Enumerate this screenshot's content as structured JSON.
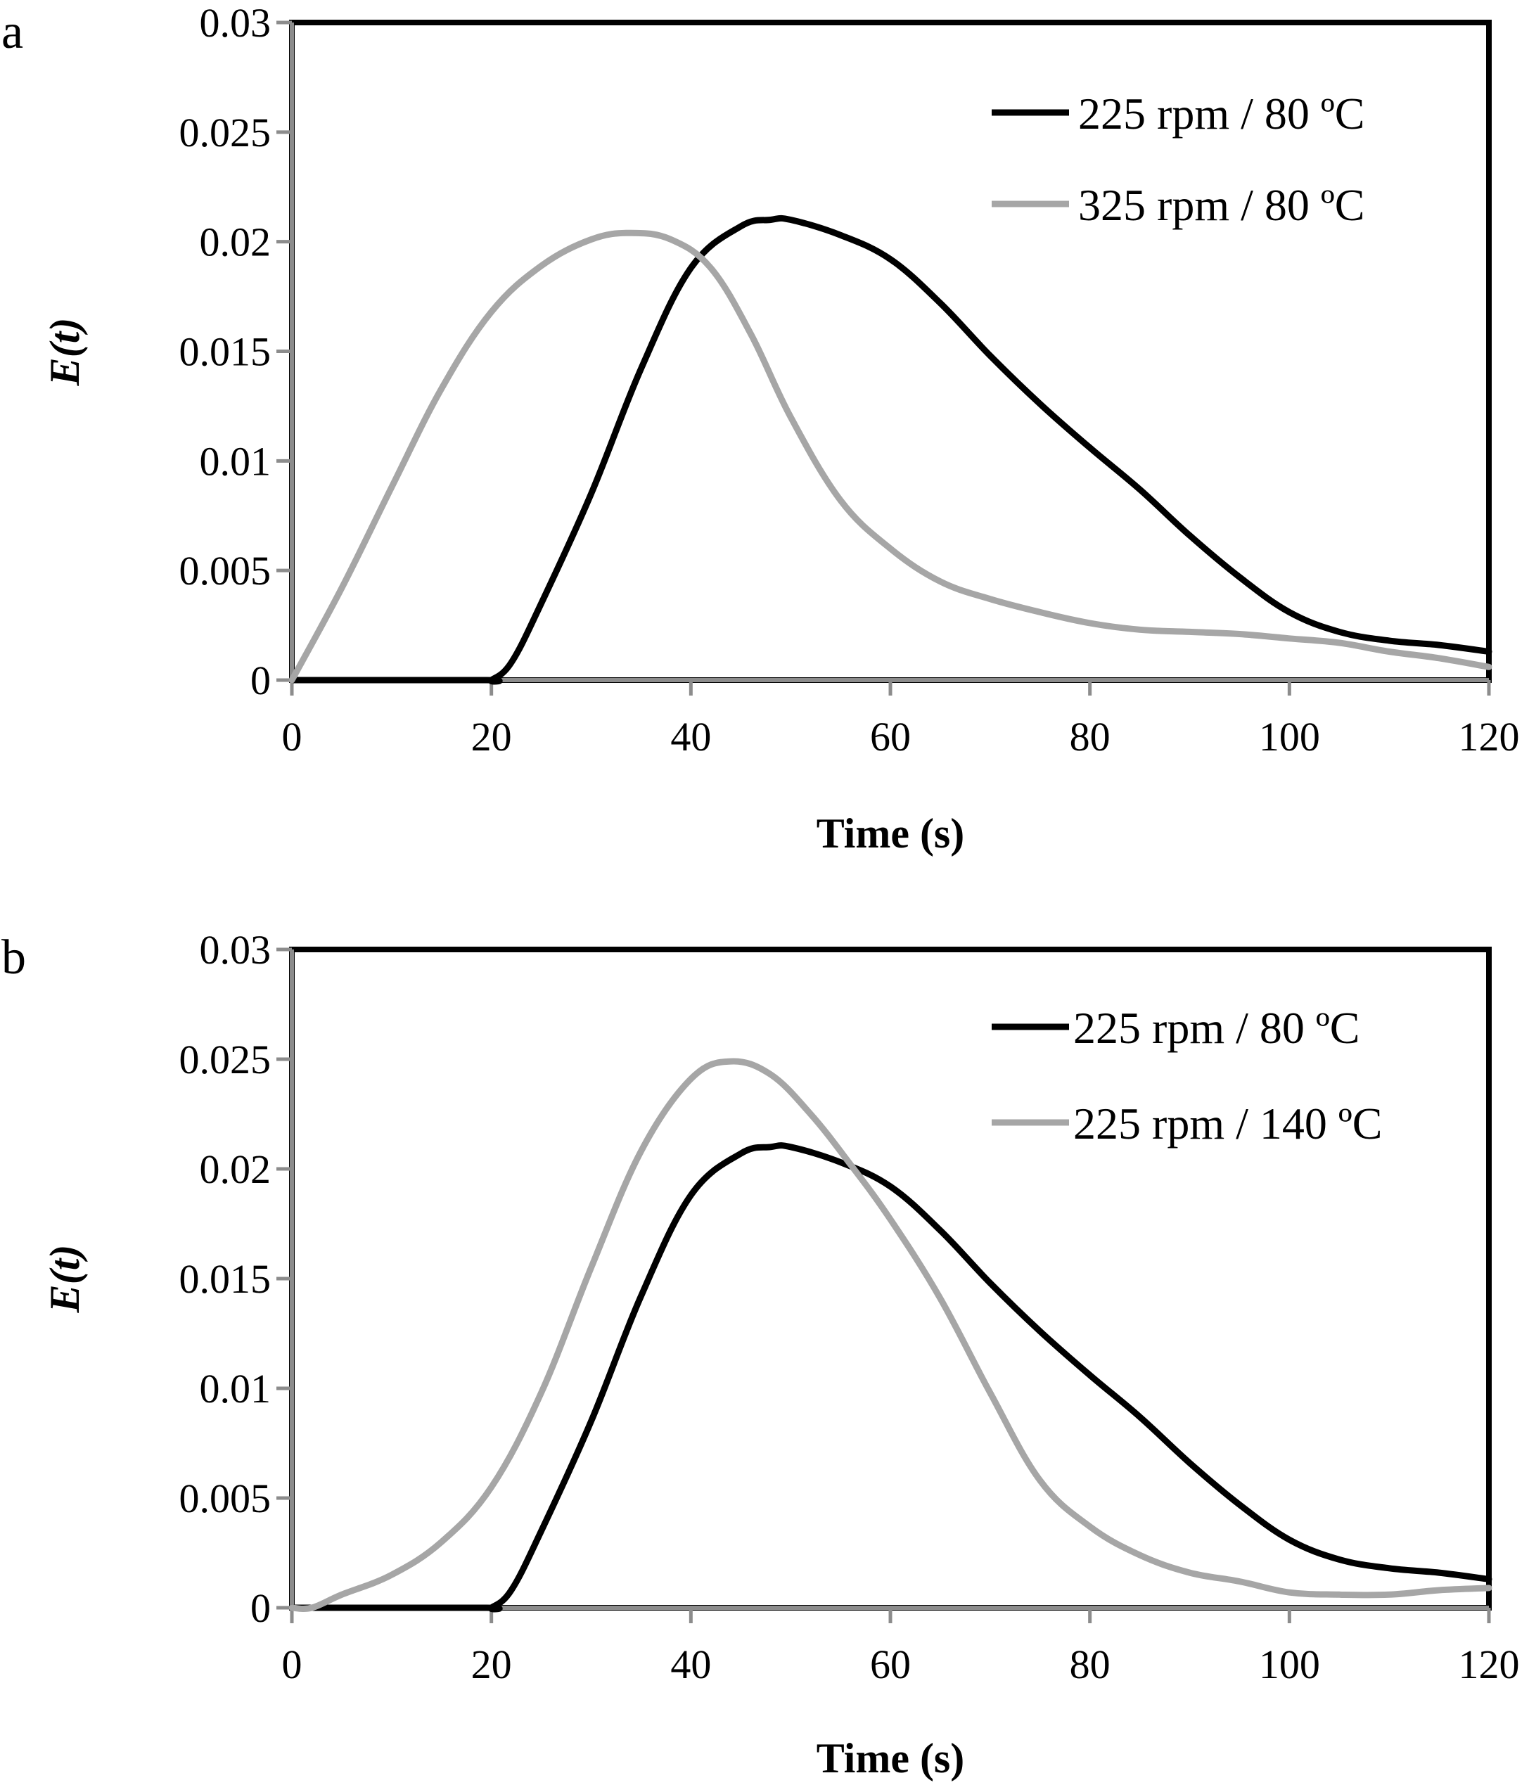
{
  "chart_data": [
    {
      "type": "line",
      "panel_label": "a",
      "xlabel": "Time (s)",
      "ylabel": "E(t)",
      "xlim": [
        0,
        120
      ],
      "ylim": [
        0,
        0.03
      ],
      "x_ticks": [
        "0",
        "20",
        "40",
        "60",
        "80",
        "100",
        "120"
      ],
      "y_ticks": [
        "0",
        "0.005",
        "0.01",
        "0.015",
        "0.02",
        "0.025",
        "0.03"
      ],
      "grid": false,
      "legend_position": "top-right",
      "series": [
        {
          "name": "225 rpm / 80 ºC",
          "color": "#000000",
          "x": [
            0,
            2,
            4,
            19.5,
            20,
            22,
            25,
            30,
            35,
            40,
            45,
            48,
            50,
            55,
            60,
            65,
            70,
            75,
            80,
            85,
            90,
            95,
            100,
            105,
            110,
            115,
            120
          ],
          "y": [
            0,
            0,
            0,
            0,
            0,
            0.0008,
            0.0035,
            0.0085,
            0.0142,
            0.0188,
            0.0207,
            0.021,
            0.021,
            0.0203,
            0.0192,
            0.0172,
            0.0148,
            0.0126,
            0.0106,
            0.0087,
            0.0066,
            0.0047,
            0.0031,
            0.0022,
            0.0018,
            0.0016,
            0.0013
          ]
        },
        {
          "name": "325 rpm / 80 ºC",
          "color": "#a6a6a6",
          "x": [
            0,
            5,
            10,
            15,
            20,
            25,
            30,
            34,
            38,
            42,
            46,
            50,
            55,
            60,
            65,
            70,
            75,
            80,
            85,
            90,
            95,
            100,
            105,
            110,
            115,
            120
          ],
          "y": [
            0,
            0.0042,
            0.0088,
            0.0133,
            0.0168,
            0.0189,
            0.0201,
            0.0204,
            0.0201,
            0.0188,
            0.0158,
            0.012,
            0.0082,
            0.006,
            0.0045,
            0.0037,
            0.0031,
            0.0026,
            0.0023,
            0.0022,
            0.0021,
            0.0019,
            0.0017,
            0.0013,
            0.001,
            0.0006
          ]
        }
      ]
    },
    {
      "type": "line",
      "panel_label": "b",
      "xlabel": "Time (s)",
      "ylabel": "E(t)",
      "xlim": [
        0,
        120
      ],
      "ylim": [
        0,
        0.03
      ],
      "x_ticks": [
        "0",
        "20",
        "40",
        "60",
        "80",
        "100",
        "120"
      ],
      "y_ticks": [
        "0",
        "0.005",
        "0.01",
        "0.015",
        "0.02",
        "0.025",
        "0.03"
      ],
      "grid": false,
      "legend_position": "top-right",
      "series": [
        {
          "name": "225 rpm / 80 ºC",
          "color": "#000000",
          "x": [
            0,
            2,
            4,
            19.5,
            20,
            22,
            25,
            30,
            35,
            40,
            45,
            48,
            50,
            55,
            60,
            65,
            70,
            75,
            80,
            85,
            90,
            95,
            100,
            105,
            110,
            115,
            120
          ],
          "y": [
            0,
            0,
            0,
            0,
            0,
            0.0008,
            0.0035,
            0.0085,
            0.0142,
            0.0188,
            0.0207,
            0.021,
            0.021,
            0.0203,
            0.0192,
            0.0172,
            0.0148,
            0.0126,
            0.0106,
            0.0087,
            0.0066,
            0.0047,
            0.0031,
            0.0022,
            0.0018,
            0.0016,
            0.0013
          ]
        },
        {
          "name": "225 rpm / 140 ºC",
          "color": "#a6a6a6",
          "x": [
            0,
            2,
            5,
            10,
            15,
            20,
            25,
            30,
            35,
            40,
            44,
            48,
            52,
            56,
            60,
            65,
            70,
            75,
            80,
            85,
            90,
            95,
            100,
            105,
            110,
            115,
            120
          ],
          "y": [
            0,
            0,
            0.0006,
            0.0015,
            0.003,
            0.0055,
            0.0098,
            0.0155,
            0.0208,
            0.0241,
            0.0249,
            0.0243,
            0.0225,
            0.0202,
            0.0177,
            0.0141,
            0.0098,
            0.0058,
            0.0037,
            0.0024,
            0.0016,
            0.0012,
            0.0007,
            0.0006,
            0.0006,
            0.0008,
            0.0009
          ]
        }
      ]
    }
  ]
}
